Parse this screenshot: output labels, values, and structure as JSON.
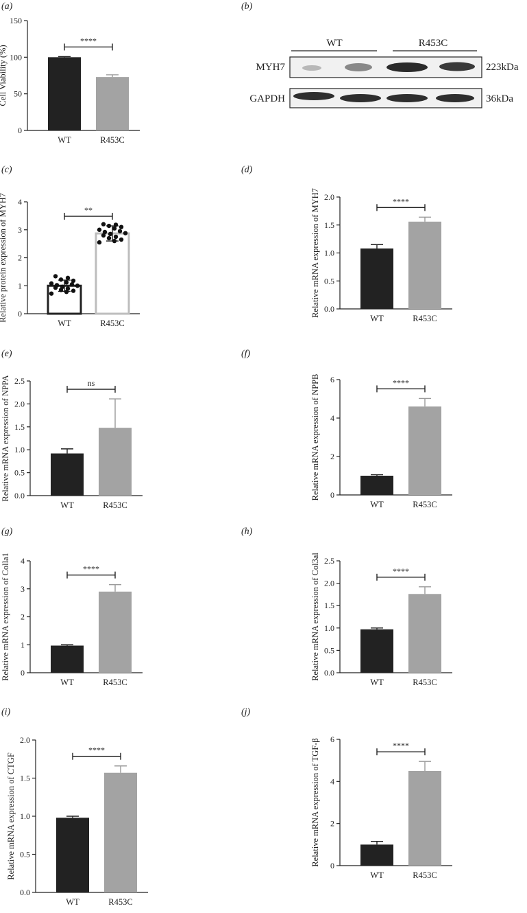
{
  "panels": {
    "a": "(a)",
    "b": "(b)",
    "c": "(c)",
    "d": "(d)",
    "e": "(e)",
    "f": "(f)",
    "g": "(g)",
    "h": "(h)",
    "i": "(i)",
    "j": "(j)"
  },
  "blot": {
    "groups": [
      "WT",
      "R453C"
    ],
    "rows": [
      {
        "protein": "MYH7",
        "size": "223kDa"
      },
      {
        "protein": "GAPDH",
        "size": "36kDa"
      }
    ]
  },
  "colors": {
    "wt": "#222222",
    "r453c": "#a3a3a3",
    "axis": "#222222"
  },
  "chart_data": [
    {
      "id": "a",
      "type": "bar",
      "categories": [
        "WT",
        "R453C"
      ],
      "values": [
        100,
        73
      ],
      "errors": [
        0.8,
        3
      ],
      "ylabel": "Cell Viability (%)",
      "ylim": [
        0,
        150
      ],
      "yticks": [
        "0",
        "50",
        "100",
        "150"
      ],
      "significance": "****"
    },
    {
      "id": "c",
      "type": "bar",
      "categories": [
        "WT",
        "R453C"
      ],
      "values": [
        1.0,
        2.87
      ],
      "errors": [
        0.2,
        0.27
      ],
      "ylabel": "Relative protein expression of MYH7",
      "ylim": [
        0,
        4
      ],
      "yticks": [
        "0",
        "1",
        "2",
        "3",
        "4"
      ],
      "significance": "**",
      "points": [
        [
          0.72,
          0.78,
          0.82,
          0.85,
          0.9,
          0.93,
          0.96,
          1.0,
          1.02,
          1.05,
          1.08,
          1.12,
          1.18,
          1.22,
          1.28,
          1.34
        ],
        [
          2.55,
          2.6,
          2.65,
          2.7,
          2.75,
          2.8,
          2.85,
          2.88,
          2.92,
          2.95,
          3.0,
          3.05,
          3.1,
          3.14,
          3.18,
          3.2
        ]
      ]
    },
    {
      "id": "d",
      "type": "bar",
      "categories": [
        "WT",
        "R453C"
      ],
      "values": [
        1.08,
        1.56
      ],
      "errors": [
        0.07,
        0.08
      ],
      "ylabel": "Relative mRNA expression of MYH7",
      "ylim": [
        0,
        2.0
      ],
      "yticks": [
        "0.0",
        "0.5",
        "1.0",
        "1.5",
        "2.0"
      ],
      "significance": "****"
    },
    {
      "id": "e",
      "type": "bar",
      "categories": [
        "WT",
        "R453C"
      ],
      "values": [
        0.92,
        1.48
      ],
      "errors": [
        0.1,
        0.63
      ],
      "ylabel": "Relative mRNA expression of NPPA",
      "ylim": [
        0,
        2.5
      ],
      "yticks": [
        "0.0",
        "0.5",
        "1.0",
        "1.5",
        "2.0",
        "2.5"
      ],
      "significance": "ns"
    },
    {
      "id": "f",
      "type": "bar",
      "categories": [
        "WT",
        "R453C"
      ],
      "values": [
        1.0,
        4.6
      ],
      "errors": [
        0.05,
        0.42
      ],
      "ylabel": "Relative mRNA expression of NPPB",
      "ylim": [
        0,
        6
      ],
      "yticks": [
        "0",
        "2",
        "4",
        "6"
      ],
      "significance": "****"
    },
    {
      "id": "g",
      "type": "bar",
      "categories": [
        "WT",
        "R453C"
      ],
      "values": [
        0.97,
        2.9
      ],
      "errors": [
        0.03,
        0.25
      ],
      "ylabel": "Relative mRNA expression of Colla1",
      "ylim": [
        0,
        4
      ],
      "yticks": [
        "0",
        "1",
        "2",
        "3",
        "4"
      ],
      "significance": "****"
    },
    {
      "id": "h",
      "type": "bar",
      "categories": [
        "WT",
        "R453C"
      ],
      "values": [
        0.97,
        1.76
      ],
      "errors": [
        0.03,
        0.16
      ],
      "ylabel": "Relative mRNA expression of Col3al",
      "ylim": [
        0,
        2.5
      ],
      "yticks": [
        "0.0",
        "0.5",
        "1.0",
        "1.5",
        "2.0",
        "2.5"
      ],
      "significance": "****"
    },
    {
      "id": "i",
      "type": "bar",
      "categories": [
        "WT",
        "R453C"
      ],
      "values": [
        0.98,
        1.57
      ],
      "errors": [
        0.02,
        0.09
      ],
      "ylabel": "Relative mRNA expression of CTGF",
      "ylim": [
        0,
        2.0
      ],
      "yticks": [
        "0.0",
        "0.5",
        "1.0",
        "1.5",
        "2.0"
      ],
      "significance": "****"
    },
    {
      "id": "j",
      "type": "bar",
      "categories": [
        "WT",
        "R453C"
      ],
      "values": [
        1.0,
        4.5
      ],
      "errors": [
        0.15,
        0.45
      ],
      "ylabel": "Relative mRNA expression of TGF-β",
      "ylim": [
        0,
        6
      ],
      "yticks": [
        "0",
        "2",
        "4",
        "6"
      ],
      "significance": "****"
    }
  ]
}
